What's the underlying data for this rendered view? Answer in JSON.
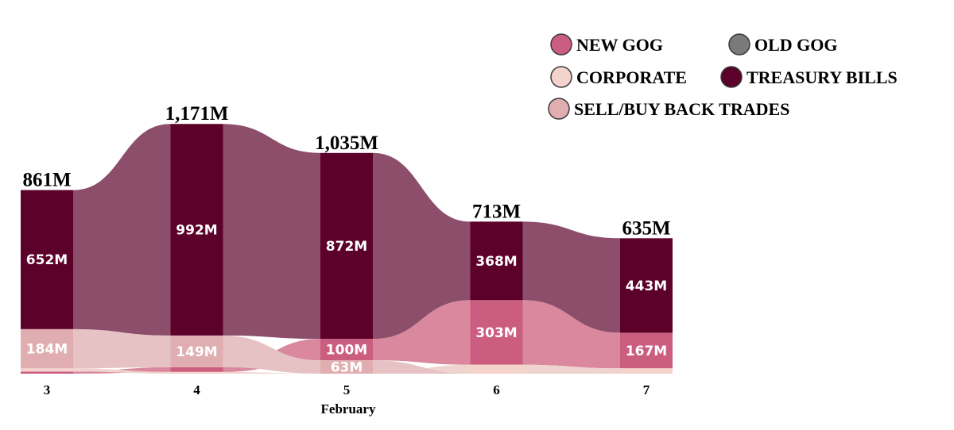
{
  "chart_data": {
    "type": "ribbon",
    "xlabel": "February",
    "categories": [
      "3",
      "4",
      "5",
      "6",
      "7"
    ],
    "totals": [
      861,
      1171,
      1035,
      713,
      635
    ],
    "total_labels": [
      "861M",
      "1,171M",
      "1,035M",
      "713M",
      "635M"
    ],
    "series": [
      {
        "name": "NEW GOG",
        "color": "#cb5e80",
        "values": [
          10,
          22,
          100,
          303,
          167
        ]
      },
      {
        "name": "OLD GOG",
        "color": "#7a7a7a",
        "values": [
          0,
          0,
          0,
          0,
          0
        ]
      },
      {
        "name": "CORPORATE",
        "color": "#f5d3cd",
        "values": [
          15,
          8,
          0,
          42,
          25
        ]
      },
      {
        "name": "TREASURY BILLS",
        "color": "#5c0129",
        "values": [
          652,
          992,
          872,
          368,
          443
        ]
      },
      {
        "name": "SELL/BUY BACK TRADES",
        "color": "#e0aeb0",
        "values": [
          184,
          149,
          63,
          0,
          0
        ]
      }
    ],
    "data_labels": [
      {
        "series": "TREASURY BILLS",
        "values": [
          "652M",
          "992M",
          "872M",
          "368M",
          "443M"
        ]
      },
      {
        "series": "SELL/BUY BACK TRADES",
        "values": [
          "184M",
          "149M",
          "63M",
          "",
          ""
        ]
      },
      {
        "series": "NEW GOG",
        "values": [
          "",
          "",
          "100M",
          "303M",
          "167M"
        ]
      }
    ],
    "ylim": [
      0,
      1200
    ],
    "grid": false,
    "legend": "top-right"
  }
}
